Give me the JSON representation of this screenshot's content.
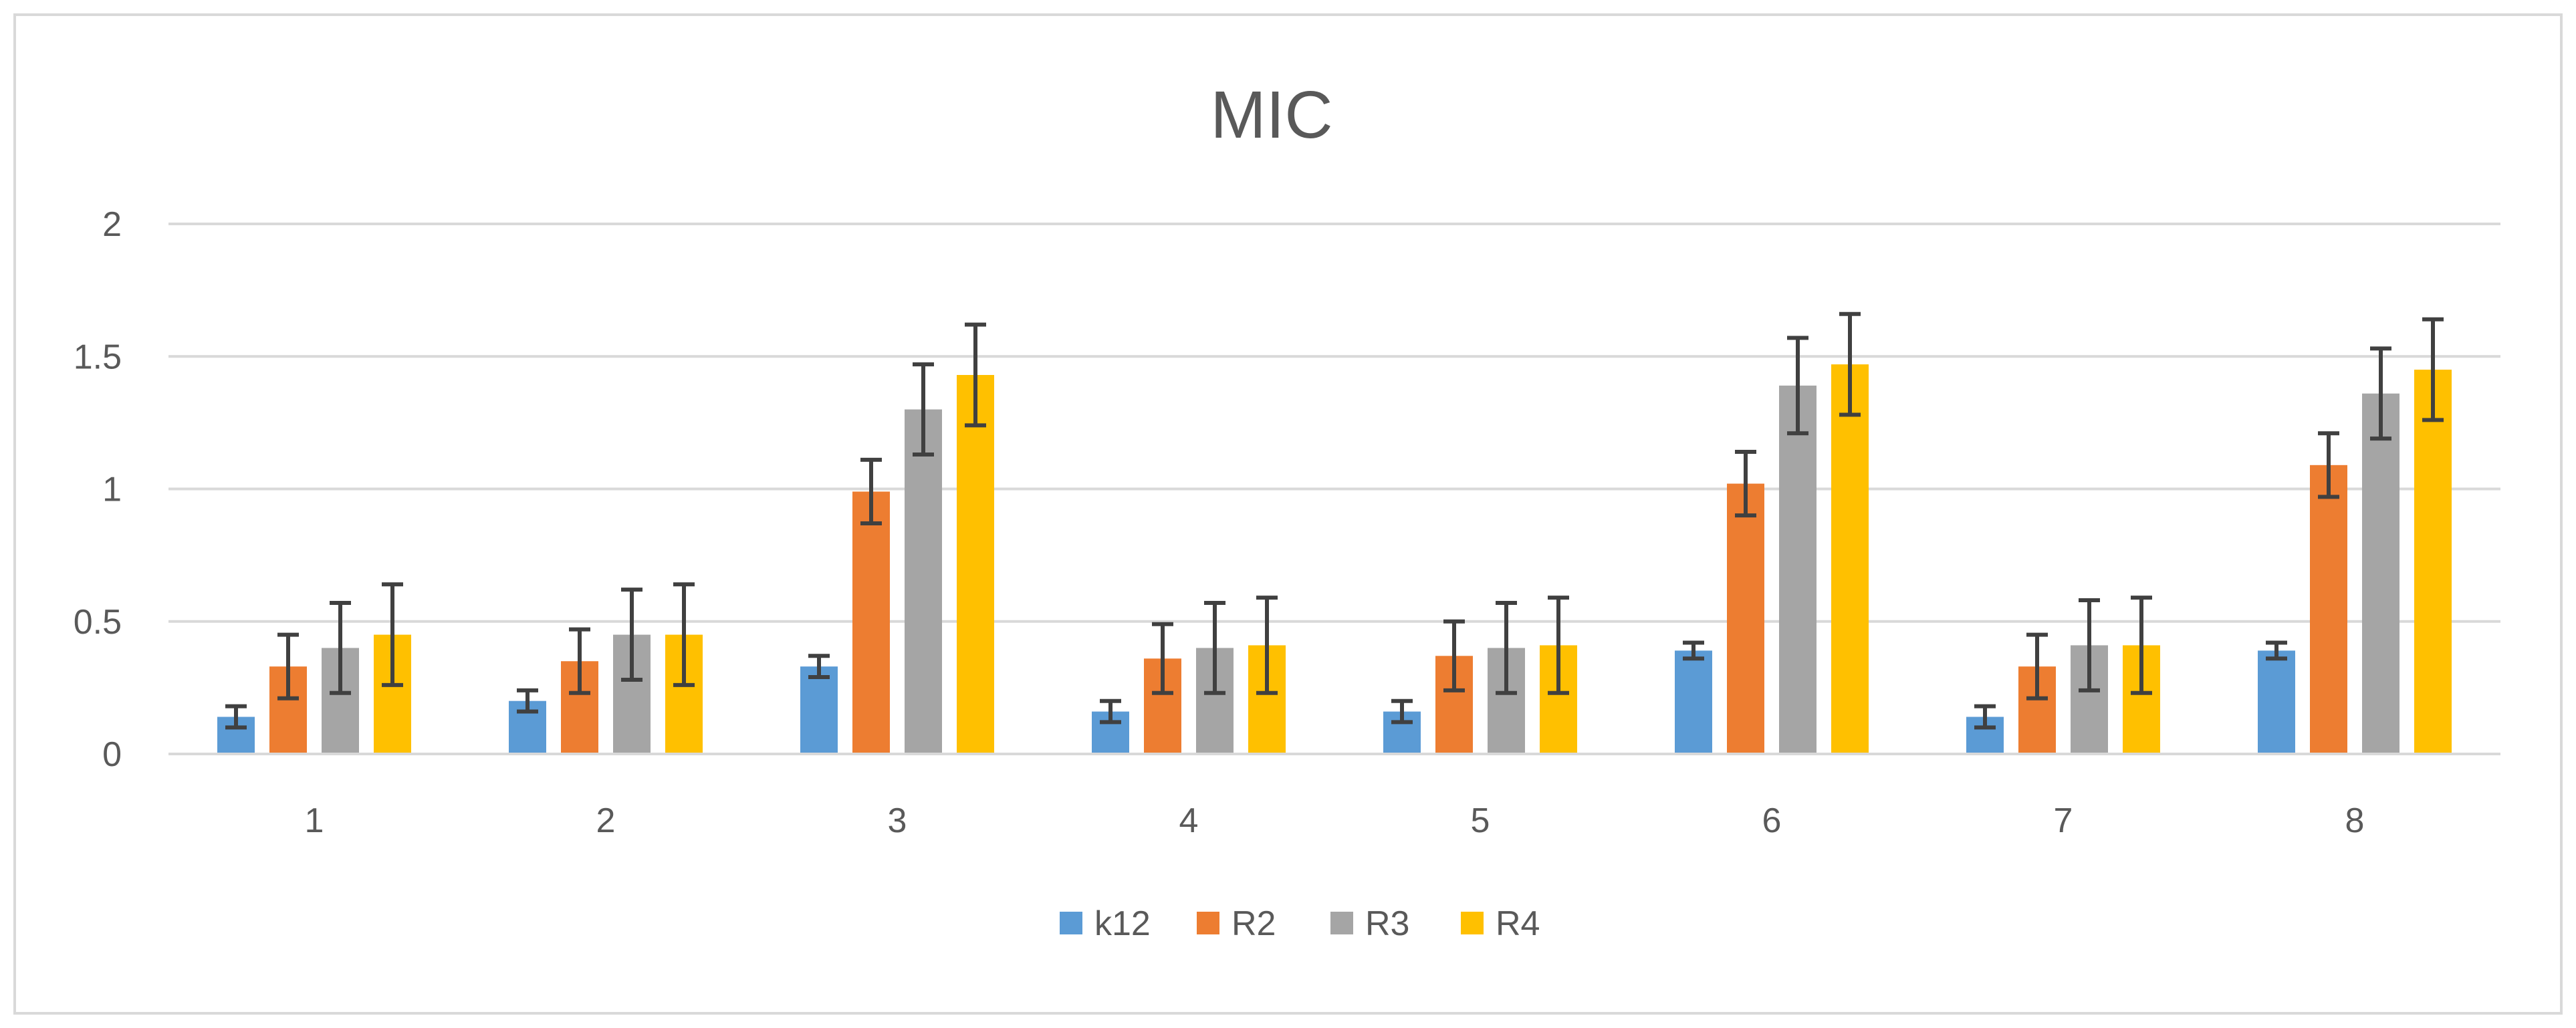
{
  "chart_data": {
    "type": "bar",
    "title": "MIC",
    "xlabel": "",
    "ylabel": "",
    "categories": [
      "1",
      "2",
      "3",
      "4",
      "5",
      "6",
      "7",
      "8"
    ],
    "ylim": [
      0,
      2
    ],
    "yticks": [
      0,
      0.5,
      1,
      1.5,
      2
    ],
    "ytick_labels": [
      "0",
      "0.5",
      "1",
      "1.5",
      "2"
    ],
    "grid": true,
    "legend_position": "bottom",
    "series": [
      {
        "name": "k12",
        "color": "#5B9BD5",
        "values": [
          0.14,
          0.2,
          0.33,
          0.16,
          0.16,
          0.39,
          0.14,
          0.39
        ],
        "errors": [
          0.04,
          0.04,
          0.04,
          0.04,
          0.04,
          0.03,
          0.04,
          0.03
        ]
      },
      {
        "name": "R2",
        "color": "#ED7D31",
        "values": [
          0.33,
          0.35,
          0.99,
          0.36,
          0.37,
          1.02,
          0.33,
          1.09
        ],
        "errors": [
          0.12,
          0.12,
          0.12,
          0.13,
          0.13,
          0.12,
          0.12,
          0.12
        ]
      },
      {
        "name": "R3",
        "color": "#A5A5A5",
        "values": [
          0.4,
          0.45,
          1.3,
          0.4,
          0.4,
          1.39,
          0.41,
          1.36
        ],
        "errors": [
          0.17,
          0.17,
          0.17,
          0.17,
          0.17,
          0.18,
          0.17,
          0.17
        ]
      },
      {
        "name": "R4",
        "color": "#FFC000",
        "values": [
          0.45,
          0.45,
          1.43,
          0.41,
          0.41,
          1.47,
          0.41,
          1.45
        ],
        "errors": [
          0.19,
          0.19,
          0.19,
          0.18,
          0.18,
          0.19,
          0.18,
          0.19
        ]
      }
    ]
  }
}
